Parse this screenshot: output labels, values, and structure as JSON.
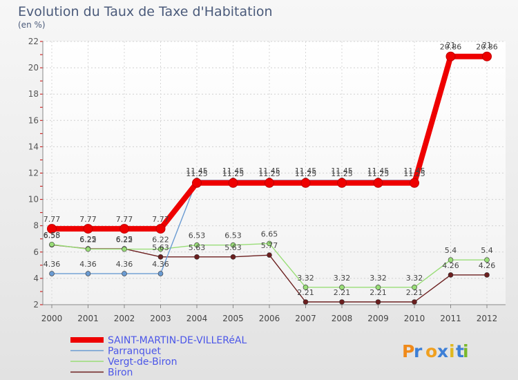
{
  "chart_data": {
    "type": "line",
    "title": "Evolution du Taux de Taxe d'Habitation",
    "unit": "(en %)",
    "xlabel": "",
    "ylabel": "",
    "ylim": [
      2,
      22
    ],
    "yticks": [
      2,
      4,
      6,
      8,
      10,
      12,
      14,
      16,
      18,
      20,
      22
    ],
    "categories": [
      "2000",
      "2001",
      "2002",
      "2003",
      "2004",
      "2005",
      "2006",
      "2007",
      "2008",
      "2009",
      "2010",
      "2011",
      "2012"
    ],
    "series": [
      {
        "name": "SAINT-MARTIN-DE-VILLERéAL",
        "color": "#ee0000",
        "values": [
          7.77,
          7.77,
          7.77,
          7.77,
          11.25,
          11.25,
          11.25,
          11.25,
          11.25,
          11.25,
          11.25,
          20.86,
          20.86
        ]
      },
      {
        "name": "Parranquet",
        "color": "#6a9bd2",
        "values": [
          4.36,
          4.36,
          4.36,
          4.36,
          11.45,
          11.45,
          11.45,
          11.45,
          11.45,
          11.45,
          11.45,
          21,
          21
        ]
      },
      {
        "name": "Vergt-de-Biron",
        "color": "#99dd77",
        "values": [
          6.58,
          6.22,
          6.22,
          6.22,
          6.53,
          6.53,
          6.65,
          3.32,
          3.32,
          3.32,
          3.32,
          5.4,
          5.4
        ]
      },
      {
        "name": "Biron",
        "color": "#6b1e1e",
        "values": [
          6.55,
          6.25,
          6.25,
          5.63,
          5.63,
          5.63,
          5.77,
          2.21,
          2.21,
          2.21,
          2.21,
          4.26,
          4.26
        ]
      }
    ]
  },
  "branding": {
    "logo": "Proxiti"
  }
}
